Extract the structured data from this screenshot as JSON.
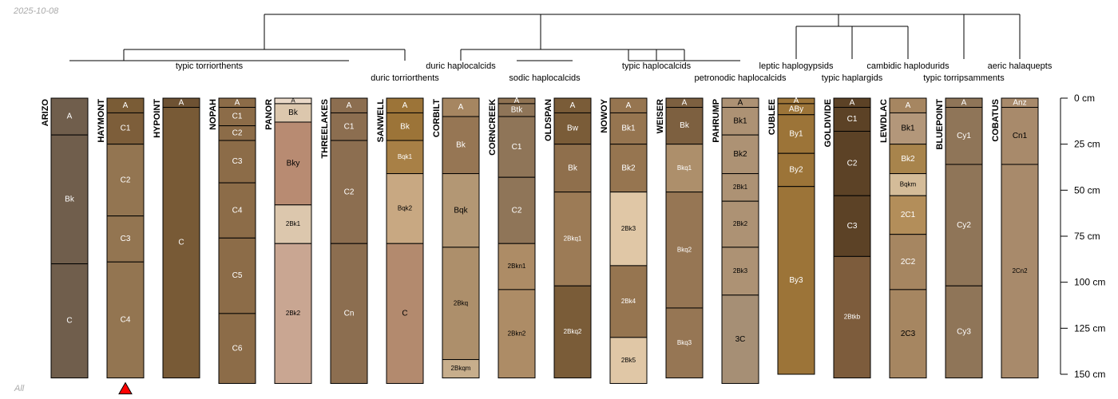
{
  "date": "2025-10-08",
  "footer": "All",
  "depth_axis": {
    "max": 150,
    "unit": "cm",
    "ticks": [
      0,
      25,
      50,
      75,
      100,
      125,
      150
    ],
    "label_suffix": " cm"
  },
  "classes": [
    {
      "label": "typic torriorthents"
    },
    {
      "label": "duric torriorthents"
    },
    {
      "label": "duric haplocalcids"
    },
    {
      "label": "sodic haplocalcids"
    },
    {
      "label": "typic haplocalcids"
    },
    {
      "label": "petronodic haplocalcids"
    },
    {
      "label": "leptic haplogypsids"
    },
    {
      "label": "typic haplargids"
    },
    {
      "label": "cambidic haplodurids"
    },
    {
      "label": "typic torripsamments"
    },
    {
      "label": "aeric halaquepts"
    }
  ],
  "profiles": [
    {
      "name": "ARIZO",
      "horizons": [
        {
          "name": "A",
          "top": 0,
          "bottom": 20,
          "color": "#705E4C",
          "text": "#ffffff"
        },
        {
          "name": "Bk",
          "top": 20,
          "bottom": 90,
          "color": "#705E4C",
          "text": "#ffffff"
        },
        {
          "name": "C",
          "top": 90,
          "bottom": 152,
          "color": "#705E4C",
          "text": "#ffffff"
        }
      ]
    },
    {
      "name": "HAYMONT",
      "marker": true,
      "horizons": [
        {
          "name": "A",
          "top": 0,
          "bottom": 8,
          "color": "#7A5C36",
          "text": "#ffffff"
        },
        {
          "name": "C1",
          "top": 8,
          "bottom": 25,
          "color": "#7D5E3A",
          "text": "#ffffff"
        },
        {
          "name": "C2",
          "top": 25,
          "bottom": 64,
          "color": "#937551",
          "text": "#ffffff"
        },
        {
          "name": "C3",
          "top": 64,
          "bottom": 89,
          "color": "#937551",
          "text": "#ffffff"
        },
        {
          "name": "C4",
          "top": 89,
          "bottom": 152,
          "color": "#937551",
          "text": "#ffffff"
        }
      ]
    },
    {
      "name": "HYPOINT",
      "horizons": [
        {
          "name": "A",
          "top": 0,
          "bottom": 5,
          "color": "#6E5233",
          "text": "#ffffff"
        },
        {
          "name": "C",
          "top": 5,
          "bottom": 152,
          "color": "#785A36",
          "text": "#ffffff"
        }
      ]
    },
    {
      "name": "NOPAH",
      "horizons": [
        {
          "name": "A",
          "top": 0,
          "bottom": 5,
          "color": "#8C6C48",
          "text": "#ffffff"
        },
        {
          "name": "C1",
          "top": 5,
          "bottom": 15,
          "color": "#8C6C48",
          "text": "#ffffff"
        },
        {
          "name": "C2",
          "top": 15,
          "bottom": 23,
          "color": "#8C6C48",
          "text": "#ffffff"
        },
        {
          "name": "C3",
          "top": 23,
          "bottom": 46,
          "color": "#8C6C48",
          "text": "#ffffff"
        },
        {
          "name": "C4",
          "top": 46,
          "bottom": 76,
          "color": "#8C6C48",
          "text": "#ffffff"
        },
        {
          "name": "C5",
          "top": 76,
          "bottom": 117,
          "color": "#8C6C48",
          "text": "#ffffff"
        },
        {
          "name": "C6",
          "top": 117,
          "bottom": 155,
          "color": "#8C6C48",
          "text": "#ffffff"
        }
      ]
    },
    {
      "name": "PANOR",
      "horizons": [
        {
          "name": "A",
          "top": 0,
          "bottom": 3,
          "color": "#EAD9C8",
          "text": "#000000",
          "small": true
        },
        {
          "name": "Bk",
          "top": 3,
          "bottom": 13,
          "color": "#DCC7AD",
          "text": "#000000"
        },
        {
          "name": "Bky",
          "top": 13,
          "bottom": 58,
          "color": "#B88B72",
          "text": "#000000"
        },
        {
          "name": "2Bk1",
          "top": 58,
          "bottom": 79,
          "color": "#DCC7AD",
          "text": "#000000",
          "small": true
        },
        {
          "name": "2Bk2",
          "top": 79,
          "bottom": 155,
          "color": "#C9A692",
          "text": "#000000",
          "small": true
        }
      ]
    },
    {
      "name": "THREELAKES",
      "horizons": [
        {
          "name": "A",
          "top": 0,
          "bottom": 8,
          "color": "#8C6E50",
          "text": "#ffffff"
        },
        {
          "name": "C1",
          "top": 8,
          "bottom": 23,
          "color": "#8C6E50",
          "text": "#ffffff"
        },
        {
          "name": "C2",
          "top": 23,
          "bottom": 79,
          "color": "#8C6E50",
          "text": "#ffffff"
        },
        {
          "name": "Cn",
          "top": 79,
          "bottom": 155,
          "color": "#8C6E50",
          "text": "#ffffff"
        }
      ]
    },
    {
      "name": "SANWELL",
      "horizons": [
        {
          "name": "A",
          "top": 0,
          "bottom": 8,
          "color": "#9C7438",
          "text": "#ffffff"
        },
        {
          "name": "Bk",
          "top": 8,
          "bottom": 23,
          "color": "#9C7438",
          "text": "#ffffff"
        },
        {
          "name": "Bqk1",
          "top": 23,
          "bottom": 41,
          "color": "#A88046",
          "text": "#ffffff",
          "small": true
        },
        {
          "name": "Bqk2",
          "top": 41,
          "bottom": 79,
          "color": "#C8A882",
          "text": "#000000",
          "small": true
        },
        {
          "name": "C",
          "top": 79,
          "bottom": 155,
          "color": "#B38A6E",
          "text": "#000000"
        }
      ]
    },
    {
      "name": "CORBILT",
      "horizons": [
        {
          "name": "A",
          "top": 0,
          "bottom": 10,
          "color": "#A68661",
          "text": "#ffffff"
        },
        {
          "name": "Bk",
          "top": 10,
          "bottom": 41,
          "color": "#967654",
          "text": "#ffffff"
        },
        {
          "name": "Bqk",
          "top": 41,
          "bottom": 81,
          "color": "#B39774",
          "text": "#000000"
        },
        {
          "name": "2Bkq",
          "top": 81,
          "bottom": 142,
          "color": "#AD8F6B",
          "text": "#000000",
          "small": true
        },
        {
          "name": "2Bkqm",
          "top": 142,
          "bottom": 152,
          "color": "#C7AE8C",
          "text": "#000000",
          "small": true
        }
      ]
    },
    {
      "name": "CORNCREEK",
      "horizons": [
        {
          "name": "A",
          "top": 0,
          "bottom": 3,
          "color": "#8F7252",
          "text": "#ffffff"
        },
        {
          "name": "Btk",
          "top": 3,
          "bottom": 10,
          "color": "#8F7558",
          "text": "#ffffff"
        },
        {
          "name": "C1",
          "top": 10,
          "bottom": 43,
          "color": "#8F7558",
          "text": "#ffffff"
        },
        {
          "name": "C2",
          "top": 43,
          "bottom": 79,
          "color": "#8F7558",
          "text": "#ffffff"
        },
        {
          "name": "2Bkn1",
          "top": 79,
          "bottom": 104,
          "color": "#AD8C66",
          "text": "#000000",
          "small": true
        },
        {
          "name": "2Bkn2",
          "top": 104,
          "bottom": 152,
          "color": "#AD8C66",
          "text": "#000000",
          "small": true
        }
      ]
    },
    {
      "name": "OLDSPAN",
      "horizons": [
        {
          "name": "A",
          "top": 0,
          "bottom": 8,
          "color": "#7A5C38",
          "text": "#ffffff"
        },
        {
          "name": "Bw",
          "top": 8,
          "bottom": 25,
          "color": "#7A5C38",
          "text": "#ffffff"
        },
        {
          "name": "Bk",
          "top": 25,
          "bottom": 51,
          "color": "#8F6F4C",
          "text": "#ffffff"
        },
        {
          "name": "2Bkq1",
          "top": 51,
          "bottom": 102,
          "color": "#9C7B56",
          "text": "#ffffff",
          "small": true
        },
        {
          "name": "2Bkq2",
          "top": 102,
          "bottom": 152,
          "color": "#7A5C38",
          "text": "#ffffff",
          "small": true
        }
      ]
    },
    {
      "name": "NOWOY",
      "horizons": [
        {
          "name": "A",
          "top": 0,
          "bottom": 8,
          "color": "#967550",
          "text": "#ffffff"
        },
        {
          "name": "Bk1",
          "top": 8,
          "bottom": 25,
          "color": "#967550",
          "text": "#ffffff"
        },
        {
          "name": "Bk2",
          "top": 25,
          "bottom": 51,
          "color": "#967550",
          "text": "#ffffff"
        },
        {
          "name": "2Bk3",
          "top": 51,
          "bottom": 91,
          "color": "#E0C7A6",
          "text": "#000000",
          "small": true
        },
        {
          "name": "2Bk4",
          "top": 91,
          "bottom": 130,
          "color": "#967550",
          "text": "#ffffff",
          "small": true
        },
        {
          "name": "2Bk5",
          "top": 130,
          "bottom": 155,
          "color": "#E0C7A6",
          "text": "#000000",
          "small": true
        }
      ]
    },
    {
      "name": "WEISER",
      "horizons": [
        {
          "name": "A",
          "top": 0,
          "bottom": 5,
          "color": "#7D6040",
          "text": "#ffffff"
        },
        {
          "name": "Bk",
          "top": 5,
          "bottom": 25,
          "color": "#7D6040",
          "text": "#ffffff"
        },
        {
          "name": "Bkq1",
          "top": 25,
          "bottom": 51,
          "color": "#AD8F6B",
          "text": "#ffffff",
          "small": true
        },
        {
          "name": "Bkq2",
          "top": 51,
          "bottom": 114,
          "color": "#967654",
          "text": "#ffffff",
          "small": true
        },
        {
          "name": "Bkq3",
          "top": 114,
          "bottom": 152,
          "color": "#967654",
          "text": "#ffffff",
          "small": true
        }
      ]
    },
    {
      "name": "PAHRUMP",
      "horizons": [
        {
          "name": "A",
          "top": 0,
          "bottom": 5,
          "color": "#AD9274",
          "text": "#000000"
        },
        {
          "name": "Bk1",
          "top": 5,
          "bottom": 20,
          "color": "#AD9274",
          "text": "#000000"
        },
        {
          "name": "Bk2",
          "top": 20,
          "bottom": 41,
          "color": "#AD9274",
          "text": "#000000"
        },
        {
          "name": "2Bk1",
          "top": 41,
          "bottom": 56,
          "color": "#AD9274",
          "text": "#000000",
          "small": true
        },
        {
          "name": "2Bk2",
          "top": 56,
          "bottom": 81,
          "color": "#AD9274",
          "text": "#000000",
          "small": true
        },
        {
          "name": "2Bk3",
          "top": 81,
          "bottom": 107,
          "color": "#AD9274",
          "text": "#000000",
          "small": true
        },
        {
          "name": "3C",
          "top": 107,
          "bottom": 155,
          "color": "#A68F75",
          "text": "#000000"
        }
      ]
    },
    {
      "name": "CUBLEE",
      "horizons": [
        {
          "name": "A",
          "top": 0,
          "bottom": 3,
          "color": "#9C7438",
          "text": "#ffffff"
        },
        {
          "name": "ABy",
          "top": 3,
          "bottom": 9,
          "color": "#9C7438",
          "text": "#ffffff"
        },
        {
          "name": "By1",
          "top": 9,
          "bottom": 30,
          "color": "#9C7438",
          "text": "#ffffff"
        },
        {
          "name": "By2",
          "top": 30,
          "bottom": 48,
          "color": "#9C7438",
          "text": "#ffffff"
        },
        {
          "name": "By3",
          "top": 48,
          "bottom": 150,
          "color": "#9C7438",
          "text": "#ffffff"
        }
      ]
    },
    {
      "name": "GOLDIVIDE",
      "horizons": [
        {
          "name": "A",
          "top": 0,
          "bottom": 5,
          "color": "#5C4226",
          "text": "#ffffff"
        },
        {
          "name": "C1",
          "top": 5,
          "bottom": 18,
          "color": "#5C4226",
          "text": "#ffffff"
        },
        {
          "name": "C2",
          "top": 18,
          "bottom": 53,
          "color": "#5C4226",
          "text": "#ffffff"
        },
        {
          "name": "C3",
          "top": 53,
          "bottom": 86,
          "color": "#5C4226",
          "text": "#ffffff"
        },
        {
          "name": "2Btkb",
          "top": 86,
          "bottom": 152,
          "color": "#7D5C3C",
          "text": "#ffffff",
          "small": true
        }
      ]
    },
    {
      "name": "LEWDLAC",
      "horizons": [
        {
          "name": "A",
          "top": 0,
          "bottom": 8,
          "color": "#A68661",
          "text": "#ffffff"
        },
        {
          "name": "Bk1",
          "top": 8,
          "bottom": 25,
          "color": "#B3977A",
          "text": "#000000"
        },
        {
          "name": "Bk2",
          "top": 25,
          "bottom": 41,
          "color": "#A8844C",
          "text": "#ffffff"
        },
        {
          "name": "Bqkm",
          "top": 41,
          "bottom": 53,
          "color": "#D4BC99",
          "text": "#000000",
          "small": true
        },
        {
          "name": "2C1",
          "top": 53,
          "bottom": 74,
          "color": "#B38E5A",
          "text": "#ffffff"
        },
        {
          "name": "2C2",
          "top": 74,
          "bottom": 104,
          "color": "#A68661",
          "text": "#ffffff"
        },
        {
          "name": "2C3",
          "top": 104,
          "bottom": 152,
          "color": "#A68661",
          "text": "#000000"
        }
      ]
    },
    {
      "name": "BLUEPOINT",
      "horizons": [
        {
          "name": "A",
          "top": 0,
          "bottom": 5,
          "color": "#8F7558",
          "text": "#ffffff"
        },
        {
          "name": "Cy1",
          "top": 5,
          "bottom": 36,
          "color": "#8F7558",
          "text": "#ffffff"
        },
        {
          "name": "Cy2",
          "top": 36,
          "bottom": 102,
          "color": "#8F7558",
          "text": "#ffffff"
        },
        {
          "name": "Cy3",
          "top": 102,
          "bottom": 152,
          "color": "#8F7558",
          "text": "#ffffff"
        }
      ]
    },
    {
      "name": "COBATUS",
      "horizons": [
        {
          "name": "Anz",
          "top": 0,
          "bottom": 5,
          "color": "#A88A6B",
          "text": "#ffffff"
        },
        {
          "name": "Cn1",
          "top": 5,
          "bottom": 36,
          "color": "#A88A6B",
          "text": "#000000"
        },
        {
          "name": "2Cn2",
          "top": 36,
          "bottom": 152,
          "color": "#A88A6B",
          "text": "#000000",
          "small": true
        }
      ]
    }
  ]
}
